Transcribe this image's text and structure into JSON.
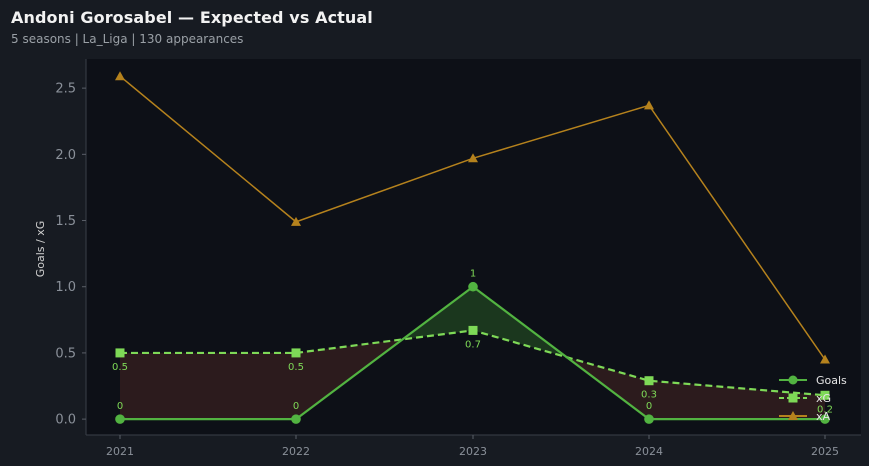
{
  "header": {
    "title": "Andoni Gorosabel — Expected vs Actual",
    "subtitle": "5 seasons | La_Liga | 130 appearances"
  },
  "colors": {
    "background": "#171b22",
    "plot_background": "#0d1017",
    "goals": "#52b341",
    "xg": "#7ed957",
    "xa": "#b5821d",
    "over_fill": "#1c3a1f",
    "under_fill": "#2e1c1e"
  },
  "chart_data": {
    "type": "line",
    "title": "Andoni Gorosabel — Expected vs Actual",
    "xlabel": "",
    "ylabel": "Goals / xG",
    "x": [
      "2021",
      "2022",
      "2023",
      "2024",
      "2025"
    ],
    "ylim": [
      -0.12,
      2.72
    ],
    "yticks": [
      "0.0",
      "0.5",
      "1.0",
      "1.5",
      "2.0",
      "2.5"
    ],
    "grid": false,
    "legend_position": "lower-right",
    "series": [
      {
        "name": "Goals",
        "values": [
          0,
          0,
          1,
          0,
          0
        ],
        "labels": [
          "0",
          "0",
          "1",
          "0",
          ""
        ],
        "marker": "circle",
        "style": "solid"
      },
      {
        "name": "xG",
        "values": [
          0.5,
          0.5,
          0.67,
          0.29,
          0.18
        ],
        "labels": [
          "0.5",
          "0.5",
          "0.7",
          "0.3",
          "0.2"
        ],
        "marker": "square",
        "style": "dashed"
      },
      {
        "name": "xA",
        "values": [
          2.59,
          1.49,
          1.97,
          2.37,
          0.45
        ],
        "labels": [],
        "marker": "triangle",
        "style": "solid"
      }
    ]
  }
}
